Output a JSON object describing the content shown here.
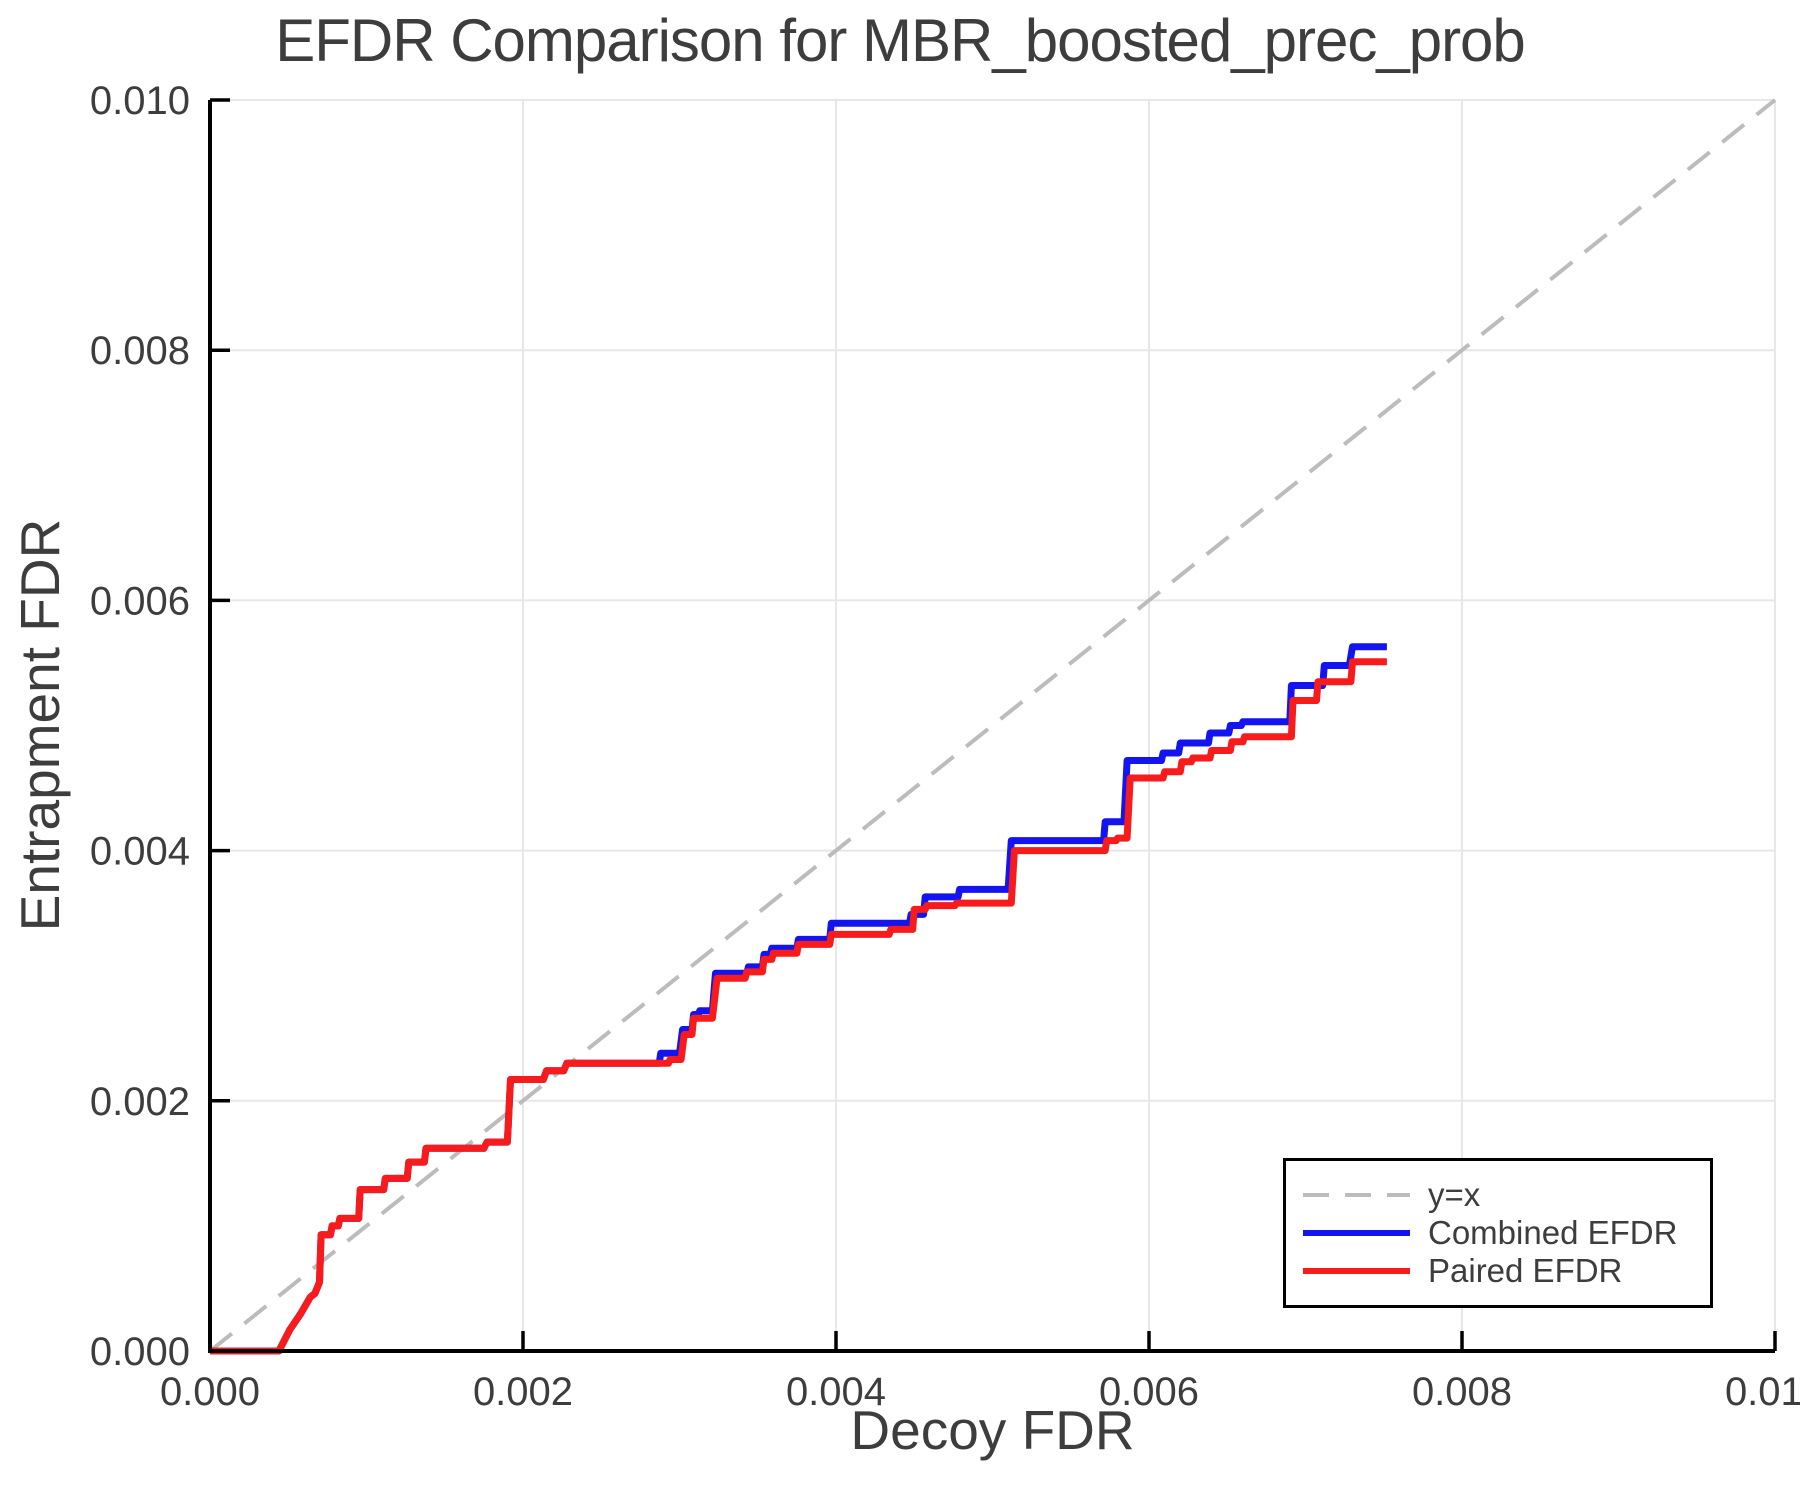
{
  "chart_data": {
    "type": "line",
    "title": "EFDR Comparison for MBR_boosted_prec_prob",
    "xlabel": "Decoy FDR",
    "ylabel": "Entrapment FDR",
    "xlim": [
      0.0,
      0.01
    ],
    "ylim": [
      0.0,
      0.01
    ],
    "xtick_values": [
      0.0,
      0.002,
      0.004,
      0.006,
      0.008,
      0.01
    ],
    "ytick_values": [
      0.0,
      0.002,
      0.004,
      0.006,
      0.008,
      0.01
    ],
    "xtick_labels": [
      "0.000",
      "0.002",
      "0.004",
      "0.006",
      "0.008",
      "0.010"
    ],
    "ytick_labels": [
      "0.000",
      "0.002",
      "0.004",
      "0.006",
      "0.008",
      "0.010"
    ],
    "grid": true,
    "grid_color": "#e7e7e7",
    "axis_color": "#000000",
    "text_color": "#3d3d3d",
    "legend_position": "lower right",
    "reference_line": {
      "label": "y=x",
      "style": "dashed",
      "color": "#bcbcbc",
      "points": [
        [
          0.0,
          0.0
        ],
        [
          0.01,
          0.01
        ]
      ]
    },
    "series": [
      {
        "name": "Combined EFDR",
        "color": "#1414f0",
        "step": true,
        "points": [
          [
            0.0,
            0.0
          ],
          [
            0.00044,
            0.0
          ],
          [
            0.00051,
            0.00017
          ],
          [
            0.00058,
            0.0003
          ],
          [
            0.00064,
            0.00043
          ],
          [
            0.00067,
            0.00046
          ],
          [
            0.0007,
            0.00055
          ],
          [
            0.00071,
            0.00093
          ],
          [
            0.00077,
            0.00093
          ],
          [
            0.00078,
            0.001
          ],
          [
            0.00082,
            0.001
          ],
          [
            0.00083,
            0.00106
          ],
          [
            0.00095,
            0.00106
          ],
          [
            0.00096,
            0.00129
          ],
          [
            0.00111,
            0.00129
          ],
          [
            0.00112,
            0.00138
          ],
          [
            0.00126,
            0.00138
          ],
          [
            0.00127,
            0.00151
          ],
          [
            0.00137,
            0.00151
          ],
          [
            0.00138,
            0.00162
          ],
          [
            0.00175,
            0.00162
          ],
          [
            0.00177,
            0.00167
          ],
          [
            0.0019,
            0.00167
          ],
          [
            0.00192,
            0.00217
          ],
          [
            0.00213,
            0.00217
          ],
          [
            0.00215,
            0.00224
          ],
          [
            0.00226,
            0.00224
          ],
          [
            0.00228,
            0.0023
          ],
          [
            0.00287,
            0.0023
          ],
          [
            0.00288,
            0.00238
          ],
          [
            0.003,
            0.00238
          ],
          [
            0.00302,
            0.00257
          ],
          [
            0.00308,
            0.00257
          ],
          [
            0.00309,
            0.00269
          ],
          [
            0.00312,
            0.00269
          ],
          [
            0.00313,
            0.00272
          ],
          [
            0.00321,
            0.00272
          ],
          [
            0.00323,
            0.00302
          ],
          [
            0.00343,
            0.00302
          ],
          [
            0.00344,
            0.00307
          ],
          [
            0.00353,
            0.00307
          ],
          [
            0.00354,
            0.00317
          ],
          [
            0.00358,
            0.00317
          ],
          [
            0.00359,
            0.00322
          ],
          [
            0.00375,
            0.00322
          ],
          [
            0.00376,
            0.00329
          ],
          [
            0.00396,
            0.00329
          ],
          [
            0.00397,
            0.00342
          ],
          [
            0.00447,
            0.00342
          ],
          [
            0.00448,
            0.00349
          ],
          [
            0.00456,
            0.00349
          ],
          [
            0.00457,
            0.00363
          ],
          [
            0.00478,
            0.00363
          ],
          [
            0.00479,
            0.00369
          ],
          [
            0.0051,
            0.00369
          ],
          [
            0.00512,
            0.00408
          ],
          [
            0.00571,
            0.00408
          ],
          [
            0.00572,
            0.00423
          ],
          [
            0.00584,
            0.00423
          ],
          [
            0.00586,
            0.00472
          ],
          [
            0.00608,
            0.00472
          ],
          [
            0.00609,
            0.00478
          ],
          [
            0.00619,
            0.00478
          ],
          [
            0.0062,
            0.00486
          ],
          [
            0.00638,
            0.00486
          ],
          [
            0.00639,
            0.00494
          ],
          [
            0.00651,
            0.00494
          ],
          [
            0.00652,
            0.005
          ],
          [
            0.00659,
            0.005
          ],
          [
            0.0066,
            0.00503
          ],
          [
            0.0069,
            0.00503
          ],
          [
            0.00691,
            0.00532
          ],
          [
            0.00711,
            0.00532
          ],
          [
            0.00712,
            0.00548
          ],
          [
            0.00728,
            0.00548
          ],
          [
            0.0073,
            0.00563
          ],
          [
            0.00752,
            0.00563
          ]
        ]
      },
      {
        "name": "Paired EFDR",
        "color": "#f81b1b",
        "step": true,
        "points": [
          [
            0.0,
            0.0
          ],
          [
            0.00044,
            0.0
          ],
          [
            0.00051,
            0.00017
          ],
          [
            0.00058,
            0.0003
          ],
          [
            0.00064,
            0.00043
          ],
          [
            0.00067,
            0.00046
          ],
          [
            0.0007,
            0.00055
          ],
          [
            0.00071,
            0.00093
          ],
          [
            0.00077,
            0.00093
          ],
          [
            0.00078,
            0.001
          ],
          [
            0.00082,
            0.001
          ],
          [
            0.00083,
            0.00106
          ],
          [
            0.00095,
            0.00106
          ],
          [
            0.00096,
            0.00129
          ],
          [
            0.00111,
            0.00129
          ],
          [
            0.00112,
            0.00138
          ],
          [
            0.00126,
            0.00138
          ],
          [
            0.00127,
            0.00151
          ],
          [
            0.00137,
            0.00151
          ],
          [
            0.00138,
            0.00162
          ],
          [
            0.00175,
            0.00162
          ],
          [
            0.00177,
            0.00167
          ],
          [
            0.0019,
            0.00167
          ],
          [
            0.00192,
            0.00217
          ],
          [
            0.00213,
            0.00217
          ],
          [
            0.00215,
            0.00224
          ],
          [
            0.00226,
            0.00224
          ],
          [
            0.00228,
            0.0023
          ],
          [
            0.00293,
            0.0023
          ],
          [
            0.00294,
            0.00233
          ],
          [
            0.00301,
            0.00233
          ],
          [
            0.00303,
            0.00253
          ],
          [
            0.00308,
            0.00253
          ],
          [
            0.00309,
            0.00266
          ],
          [
            0.00321,
            0.00266
          ],
          [
            0.00324,
            0.00298
          ],
          [
            0.00342,
            0.00298
          ],
          [
            0.00343,
            0.00303
          ],
          [
            0.00353,
            0.00303
          ],
          [
            0.00354,
            0.00313
          ],
          [
            0.00359,
            0.00313
          ],
          [
            0.0036,
            0.00318
          ],
          [
            0.00375,
            0.00318
          ],
          [
            0.00376,
            0.00325
          ],
          [
            0.00396,
            0.00325
          ],
          [
            0.00397,
            0.00333
          ],
          [
            0.00434,
            0.00333
          ],
          [
            0.00435,
            0.00337
          ],
          [
            0.00449,
            0.00337
          ],
          [
            0.0045,
            0.00353
          ],
          [
            0.00457,
            0.00353
          ],
          [
            0.00458,
            0.00356
          ],
          [
            0.00476,
            0.00356
          ],
          [
            0.00477,
            0.00358
          ],
          [
            0.00512,
            0.00358
          ],
          [
            0.00514,
            0.004
          ],
          [
            0.00572,
            0.004
          ],
          [
            0.00573,
            0.00408
          ],
          [
            0.00579,
            0.00408
          ],
          [
            0.0058,
            0.0041
          ],
          [
            0.00586,
            0.0041
          ],
          [
            0.00588,
            0.00458
          ],
          [
            0.00609,
            0.00458
          ],
          [
            0.0061,
            0.00463
          ],
          [
            0.0062,
            0.00463
          ],
          [
            0.00621,
            0.00471
          ],
          [
            0.00627,
            0.00471
          ],
          [
            0.00628,
            0.00474
          ],
          [
            0.00639,
            0.00474
          ],
          [
            0.0064,
            0.0048
          ],
          [
            0.00652,
            0.0048
          ],
          [
            0.00653,
            0.00487
          ],
          [
            0.0066,
            0.00487
          ],
          [
            0.00661,
            0.00491
          ],
          [
            0.00691,
            0.00491
          ],
          [
            0.00692,
            0.0052
          ],
          [
            0.00707,
            0.0052
          ],
          [
            0.00708,
            0.00535
          ],
          [
            0.00729,
            0.00535
          ],
          [
            0.0073,
            0.00551
          ],
          [
            0.00752,
            0.00551
          ]
        ]
      }
    ]
  }
}
